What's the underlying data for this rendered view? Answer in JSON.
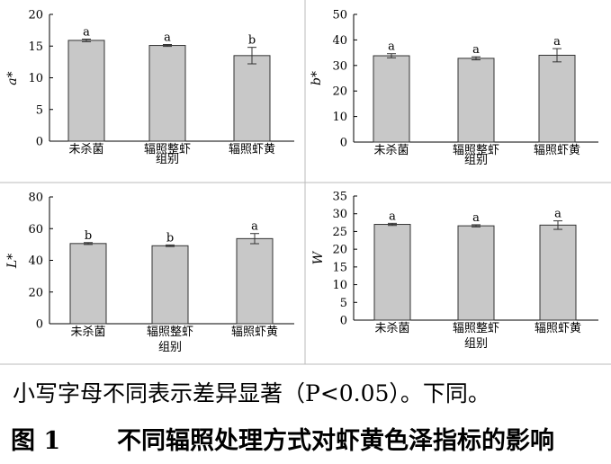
{
  "note_text": "小写字母不同表示差异显著（P<0.05）。下同。",
  "figure_label": "图 1",
  "figure_title": "不同辐照处理方式对虾黄色泽指标的影响",
  "chart_data": [
    {
      "type": "bar",
      "ylabel": "a*",
      "xlabel": "组别",
      "categories": [
        "未杀菌",
        "辐照整虾",
        "辐照虾黄"
      ],
      "values": [
        15.9,
        15.1,
        13.5
      ],
      "errors": [
        0.2,
        0.15,
        1.3
      ],
      "letters": [
        "a",
        "a",
        "b"
      ],
      "ylim": [
        0,
        20
      ],
      "yticks": [
        0,
        5,
        10,
        15,
        20
      ]
    },
    {
      "type": "bar",
      "ylabel": "b*",
      "xlabel": "组别",
      "categories": [
        "未杀菌",
        "辐照整虾",
        "辐照虾黄"
      ],
      "values": [
        33.8,
        32.8,
        34.0
      ],
      "errors": [
        0.8,
        0.6,
        2.6
      ],
      "letters": [
        "a",
        "a",
        "a"
      ],
      "ylim": [
        0,
        50
      ],
      "yticks": [
        0,
        10,
        20,
        30,
        40,
        50
      ]
    },
    {
      "type": "bar",
      "ylabel": "L*",
      "xlabel": "组别",
      "categories": [
        "未杀菌",
        "辐照整虾",
        "辐照虾黄"
      ],
      "values": [
        50.6,
        49.2,
        53.7
      ],
      "errors": [
        0.6,
        0.5,
        3.2
      ],
      "letters": [
        "b",
        "b",
        "a"
      ],
      "ylim": [
        0,
        80
      ],
      "yticks": [
        0,
        20,
        40,
        60,
        80
      ]
    },
    {
      "type": "bar",
      "ylabel": "W",
      "xlabel": "组别",
      "categories": [
        "未杀菌",
        "辐照整虾",
        "辐照虾黄"
      ],
      "values": [
        27.0,
        26.6,
        26.8
      ],
      "errors": [
        0.3,
        0.3,
        1.2
      ],
      "letters": [
        "a",
        "a",
        "a"
      ],
      "ylim": [
        0,
        35
      ],
      "yticks": [
        0,
        5,
        10,
        15,
        20,
        25,
        30,
        35
      ]
    }
  ]
}
